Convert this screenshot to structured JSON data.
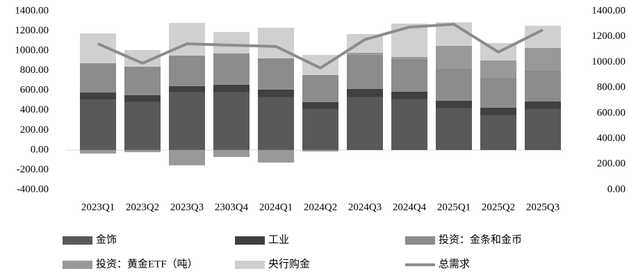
{
  "chart_data": {
    "type": "bar",
    "categories": [
      "2023Q1",
      "2023Q2",
      "2023Q3",
      "2303Q4",
      "2024Q1",
      "2024Q2",
      "2024Q3",
      "2024Q4",
      "2025Q1",
      "2025Q2",
      "2025Q3"
    ],
    "series": [
      {
        "name": "金饰",
        "color": "#595959",
        "values": [
          510,
          483,
          581,
          581,
          532,
          413,
          532,
          511,
          420,
          350,
          413
        ]
      },
      {
        "name": "工业",
        "color": "#404040",
        "values": [
          70,
          70,
          63,
          77,
          77,
          70,
          84,
          77,
          77,
          77,
          77
        ]
      },
      {
        "name": "投资：金条和金币",
        "color": "#8c8c8c",
        "values": [
          295,
          287,
          308,
          315,
          315,
          273,
          344,
          330,
          327,
          306,
          317
        ]
      },
      {
        "name": "投资：黄金ETF（吨）",
        "color": "#999999",
        "values": [
          -35,
          -21,
          -154,
          -70,
          -126,
          -14,
          20,
          20,
          226,
          170,
          222
        ]
      },
      {
        "name": "央行购金",
        "color": "#d0d0d0",
        "values": [
          300,
          168,
          329,
          217,
          308,
          203,
          189,
          336,
          238,
          175,
          224
        ]
      },
      {
        "name": "总需求",
        "color": "#8c8c8c",
        "type": "line",
        "axis": "y2",
        "values": [
          1144,
          992,
          1144,
          1133,
          1123,
          954,
          1177,
          1275,
          1297,
          1079,
          1253
        ]
      }
    ],
    "ylim": [
      -400,
      1400
    ],
    "yticks": [
      {
        "value": -400,
        "label": "-400.00"
      },
      {
        "value": -200,
        "label": "-200.00"
      },
      {
        "value": 0,
        "label": "0.00"
      },
      {
        "value": 200,
        "label": "200.00"
      },
      {
        "value": 400,
        "label": "400.00"
      },
      {
        "value": 600,
        "label": "600.00"
      },
      {
        "value": 800,
        "label": "800.00"
      },
      {
        "value": 1000,
        "label": "1000.00"
      },
      {
        "value": 1200,
        "label": "1200.00"
      },
      {
        "value": 1400,
        "label": "1400.00"
      }
    ],
    "y2lim": [
      0,
      1400
    ],
    "y2ticks": [
      {
        "value": 0,
        "label": "0.00"
      },
      {
        "value": 200,
        "label": "200.00"
      },
      {
        "value": 400,
        "label": "400.00"
      },
      {
        "value": 600,
        "label": "600.00"
      },
      {
        "value": 800,
        "label": "800.00"
      },
      {
        "value": 1000,
        "label": "1000.00"
      },
      {
        "value": 1200,
        "label": "1200.00"
      },
      {
        "value": 1400,
        "label": "1400.00"
      }
    ],
    "legend": "bottom"
  }
}
